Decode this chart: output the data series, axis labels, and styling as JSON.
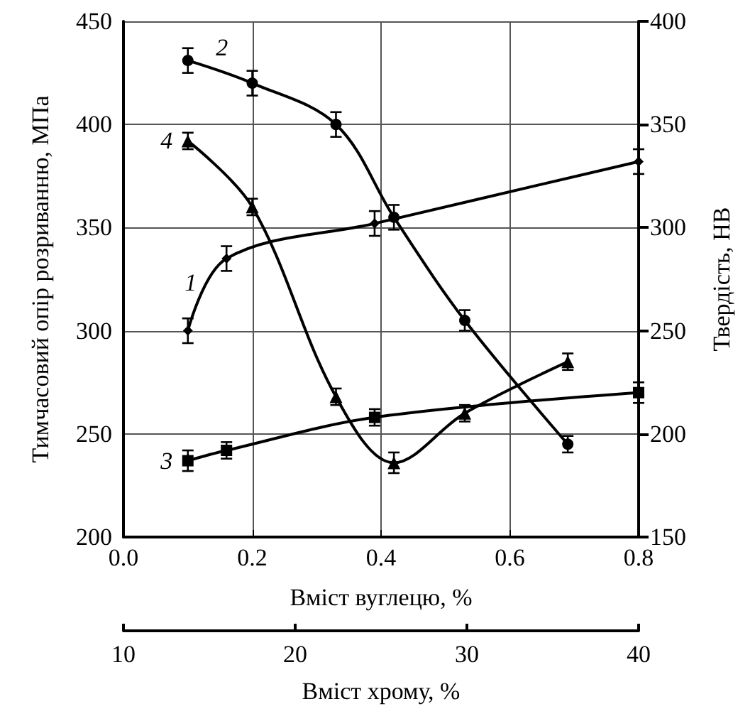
{
  "chart_data": {
    "type": "line",
    "xlabel": "Вміст вуглецю, %",
    "ylabel": "Тимчасовий опір розриванню, МПа",
    "y2label": "Твердість, НВ",
    "x2label": "Вміст хрому, %",
    "xlim": [
      0,
      0.8
    ],
    "xticks": [
      {
        "value": 0,
        "label": "0.0"
      },
      0.2,
      0.4,
      0.6,
      0.8
    ],
    "ylim": [
      200,
      450
    ],
    "yticks": [
      200,
      250,
      300,
      350,
      400,
      450
    ],
    "y2lim": [
      150,
      400
    ],
    "y2ticks": [
      150,
      200,
      250,
      300,
      350,
      400
    ],
    "x2lim": [
      10,
      40
    ],
    "x2ticks": [
      10,
      20,
      30,
      40
    ],
    "grid": true,
    "legend": false,
    "line_style": "solid",
    "series": [
      {
        "name": "1",
        "color": "#000000",
        "marker": "diamond",
        "x": [
          0.1,
          0.16,
          0.39,
          0.8
        ],
        "values": [
          300,
          335,
          352,
          382
        ],
        "errors": [
          6,
          6,
          6,
          6
        ]
      },
      {
        "name": "2",
        "color": "#000000",
        "marker": "circle",
        "x": [
          0.1,
          0.2,
          0.33,
          0.42,
          0.53,
          0.69
        ],
        "values": [
          431,
          420,
          400,
          355,
          305,
          245
        ],
        "errors": [
          6,
          6,
          6,
          6,
          5,
          4
        ]
      },
      {
        "name": "3",
        "color": "#000000",
        "marker": "square",
        "x": [
          0.1,
          0.16,
          0.39,
          0.8
        ],
        "values": [
          237,
          242,
          258,
          270
        ],
        "errors": [
          5,
          4,
          4,
          5
        ]
      },
      {
        "name": "4",
        "color": "#000000",
        "marker": "triangle",
        "x": [
          0.1,
          0.2,
          0.33,
          0.42,
          0.53,
          0.69
        ],
        "values": [
          392,
          360,
          268,
          236,
          260,
          285
        ],
        "errors": [
          4,
          4,
          4,
          5,
          4,
          4
        ]
      }
    ]
  }
}
